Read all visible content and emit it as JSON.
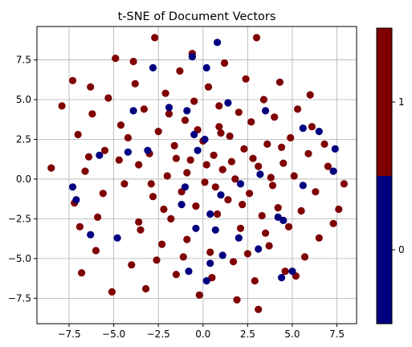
{
  "chart_data": {
    "type": "scatter",
    "title": "t-SNE of Document Vectors",
    "xlabel": "",
    "ylabel": "",
    "xlim": [
      -9.3,
      8.6
    ],
    "ylim": [
      -9.1,
      9.6
    ],
    "xticks": [
      -7.5,
      -5.0,
      -2.5,
      0.0,
      2.5,
      5.0,
      7.5
    ],
    "xtick_labels": [
      "−7.5",
      "−5.0",
      "−2.5",
      "0.0",
      "2.5",
      "5.0",
      "7.5"
    ],
    "yticks": [
      -7.5,
      -5.0,
      -2.5,
      0.0,
      2.5,
      5.0,
      7.5
    ],
    "ytick_labels": [
      "−7.5",
      "−5.0",
      "−2.5",
      "0.0",
      "2.5",
      "5.0",
      "7.5"
    ],
    "grid": true,
    "colorbar": {
      "ticks": [
        0,
        1
      ],
      "tick_labels": [
        "0",
        "1"
      ],
      "range": [
        -0.5,
        1.5
      ],
      "colors": {
        "0": "#00007f",
        "1": "#7f0000"
      }
    },
    "series": [
      {
        "label": 1,
        "color": "#7f0000",
        "points": [
          [
            -8.5,
            0.7
          ],
          [
            -7.9,
            4.6
          ],
          [
            -7.3,
            6.2
          ],
          [
            -7.2,
            -1.5
          ],
          [
            -7.0,
            2.8
          ],
          [
            -6.9,
            -3.0
          ],
          [
            -6.8,
            -5.9
          ],
          [
            -6.6,
            0.5
          ],
          [
            -6.3,
            5.8
          ],
          [
            -6.2,
            4.1
          ],
          [
            -6.0,
            -4.5
          ],
          [
            -5.9,
            -2.4
          ],
          [
            -5.5,
            1.8
          ],
          [
            -5.3,
            5.1
          ],
          [
            -5.1,
            -7.1
          ],
          [
            -4.9,
            7.6
          ],
          [
            -4.6,
            3.4
          ],
          [
            -4.4,
            -0.3
          ],
          [
            -4.2,
            2.6
          ],
          [
            -4.0,
            -5.4
          ],
          [
            -3.8,
            6.0
          ],
          [
            -3.6,
            0.9
          ],
          [
            -3.5,
            -3.2
          ],
          [
            -3.3,
            4.4
          ],
          [
            -3.2,
            -6.9
          ],
          [
            -3.0,
            1.6
          ],
          [
            -2.8,
            -1.1
          ],
          [
            -2.7,
            8.9
          ],
          [
            -2.5,
            3.0
          ],
          [
            -2.3,
            -4.1
          ],
          [
            -2.1,
            5.4
          ],
          [
            -2.0,
            0.2
          ],
          [
            -1.8,
            -2.5
          ],
          [
            -1.6,
            2.1
          ],
          [
            -1.5,
            -6.0
          ],
          [
            -1.3,
            6.8
          ],
          [
            -1.2,
            -0.8
          ],
          [
            -1.0,
            3.7
          ],
          [
            -0.9,
            -3.8
          ],
          [
            -0.7,
            1.2
          ],
          [
            -0.5,
            4.9
          ],
          [
            -0.4,
            -1.7
          ],
          [
            -0.2,
            -7.3
          ],
          [
            0.0,
            2.4
          ],
          [
            0.1,
            -0.2
          ],
          [
            0.3,
            5.8
          ],
          [
            0.4,
            -4.6
          ],
          [
            0.6,
            1.5
          ],
          [
            0.8,
            -2.2
          ],
          [
            0.9,
            3.3
          ],
          [
            1.1,
            0.6
          ],
          [
            1.2,
            7.3
          ],
          [
            1.4,
            -1.3
          ],
          [
            1.5,
            2.7
          ],
          [
            1.7,
            -5.2
          ],
          [
            1.8,
            0.0
          ],
          [
            2.0,
            4.2
          ],
          [
            2.1,
            -3.1
          ],
          [
            2.3,
            1.9
          ],
          [
            2.4,
            6.3
          ],
          [
            2.6,
            -0.9
          ],
          [
            2.7,
            3.6
          ],
          [
            2.9,
            -6.4
          ],
          [
            3.0,
            8.9
          ],
          [
            3.1,
            0.8
          ],
          [
            3.3,
            -2.3
          ],
          [
            3.4,
            5.0
          ],
          [
            3.6,
            2.2
          ],
          [
            3.7,
            -4.2
          ],
          [
            3.9,
            -0.4
          ],
          [
            4.0,
            3.9
          ],
          [
            4.2,
            -1.8
          ],
          [
            4.3,
            6.1
          ],
          [
            4.5,
            1.0
          ],
          [
            4.6,
            -5.8
          ],
          [
            4.8,
            -3.0
          ],
          [
            4.9,
            2.6
          ],
          [
            5.1,
            0.2
          ],
          [
            5.3,
            4.4
          ],
          [
            5.5,
            -2.0
          ],
          [
            5.7,
            -4.9
          ],
          [
            5.9,
            1.6
          ],
          [
            6.1,
            3.3
          ],
          [
            6.3,
            -0.8
          ],
          [
            6.5,
            -3.7
          ],
          [
            6.8,
            2.2
          ],
          [
            7.0,
            0.8
          ],
          [
            7.3,
            -2.8
          ],
          [
            7.6,
            -1.9
          ],
          [
            7.9,
            -0.3
          ],
          [
            3.1,
            -8.2
          ],
          [
            -1.5,
            1.3
          ],
          [
            -0.9,
            0.4
          ],
          [
            0.2,
            0.9
          ],
          [
            0.7,
            -0.5
          ],
          [
            1.6,
            1.1
          ],
          [
            -2.2,
            -1.9
          ],
          [
            2.2,
            -1.6
          ],
          [
            -0.3,
            3.1
          ],
          [
            1.0,
            2.9
          ],
          [
            -1.9,
            4.1
          ],
          [
            2.8,
            1.3
          ],
          [
            -3.6,
            -2.7
          ],
          [
            3.5,
            -3.4
          ],
          [
            -4.7,
            1.2
          ],
          [
            4.4,
            2.0
          ],
          [
            -2.6,
            -5.1
          ],
          [
            0.5,
            -6.2
          ],
          [
            1.9,
            -7.6
          ],
          [
            -0.6,
            7.9
          ],
          [
            -5.6,
            -0.9
          ],
          [
            5.2,
            -6.1
          ],
          [
            -6.4,
            1.4
          ],
          [
            6.0,
            5.3
          ],
          [
            -3.9,
            7.4
          ],
          [
            2.5,
            -4.7
          ],
          [
            -1.1,
            -4.9
          ],
          [
            0.9,
            4.6
          ],
          [
            -2.9,
            -0.3
          ],
          [
            3.8,
            0.1
          ]
        ]
      },
      {
        "label": 0,
        "color": "#00007f",
        "points": [
          [
            0.8,
            8.6
          ],
          [
            -0.6,
            7.7
          ],
          [
            -2.8,
            7.0
          ],
          [
            0.2,
            7.0
          ],
          [
            -1.9,
            4.5
          ],
          [
            -0.9,
            4.3
          ],
          [
            1.4,
            4.8
          ],
          [
            -3.9,
            4.3
          ],
          [
            -4.2,
            1.7
          ],
          [
            -5.8,
            1.5
          ],
          [
            -7.3,
            -0.5
          ],
          [
            -7.1,
            -1.3
          ],
          [
            -3.1,
            1.8
          ],
          [
            -0.5,
            2.8
          ],
          [
            0.1,
            2.5
          ],
          [
            -0.3,
            1.8
          ],
          [
            3.5,
            4.3
          ],
          [
            5.6,
            3.2
          ],
          [
            6.5,
            3.0
          ],
          [
            7.4,
            1.9
          ],
          [
            7.3,
            0.5
          ],
          [
            5.6,
            -0.4
          ],
          [
            3.2,
            0.3
          ],
          [
            2.1,
            -0.3
          ],
          [
            1.0,
            -1.0
          ],
          [
            0.4,
            -2.2
          ],
          [
            -1.0,
            -0.5
          ],
          [
            -1.2,
            -1.6
          ],
          [
            -0.4,
            -3.1
          ],
          [
            0.7,
            -3.2
          ],
          [
            2.0,
            -3.7
          ],
          [
            4.2,
            -2.4
          ],
          [
            4.5,
            -2.6
          ],
          [
            3.1,
            -4.4
          ],
          [
            1.1,
            -4.8
          ],
          [
            0.4,
            -5.3
          ],
          [
            -0.8,
            -5.8
          ],
          [
            0.2,
            -6.4
          ],
          [
            4.4,
            -6.2
          ],
          [
            5.0,
            -5.8
          ],
          [
            -6.3,
            -3.5
          ],
          [
            -4.8,
            -3.7
          ]
        ]
      }
    ]
  }
}
